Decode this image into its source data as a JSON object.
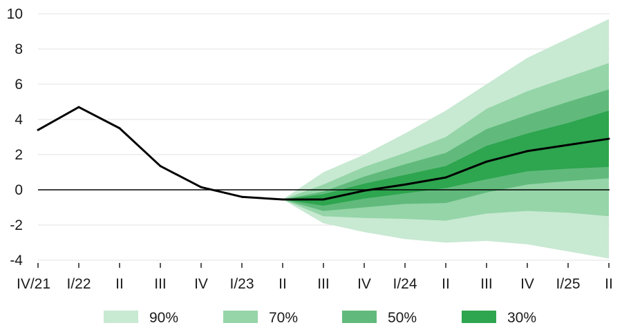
{
  "chart_data": {
    "type": "area",
    "title": "",
    "xlabel": "",
    "ylabel": "",
    "x_ticks": [
      "IV/21",
      "I/22",
      "II",
      "III",
      "IV",
      "I/23",
      "II",
      "III",
      "IV",
      "I/24",
      "II",
      "III",
      "IV",
      "I/25",
      "II"
    ],
    "y_ticks": [
      10,
      8,
      6,
      4,
      2,
      0,
      -2,
      -4
    ],
    "ylim": [
      -4,
      10
    ],
    "grid": "horizontal",
    "zero_line": true,
    "legend_position": "bottom",
    "central_line": {
      "color": "#000000",
      "values": [
        3.4,
        4.7,
        3.5,
        1.35,
        0.15,
        -0.4,
        -0.55,
        -0.55,
        -0.05,
        0.3,
        0.7,
        1.6,
        2.2,
        2.55,
        2.9
      ]
    },
    "fan_start_index": 6,
    "bands": [
      {
        "name": "90%",
        "color": "#c8e9d2",
        "lower": [
          -0.55,
          -1.9,
          -2.4,
          -2.8,
          -3.0,
          -2.9,
          -3.1,
          -3.5,
          -3.9
        ],
        "upper": [
          -0.55,
          1.0,
          2.0,
          3.2,
          4.5,
          6.0,
          7.5,
          8.6,
          9.7
        ]
      },
      {
        "name": "70%",
        "color": "#95d5a8",
        "lower": [
          -0.55,
          -1.5,
          -1.6,
          -1.65,
          -1.75,
          -1.35,
          -1.2,
          -1.3,
          -1.5
        ],
        "upper": [
          -0.55,
          0.3,
          1.3,
          2.1,
          3.0,
          4.6,
          5.6,
          6.4,
          7.2
        ]
      },
      {
        "name": "50%",
        "color": "#61ba7c",
        "lower": [
          -0.55,
          -1.2,
          -1.0,
          -0.8,
          -0.75,
          -0.15,
          0.3,
          0.5,
          0.65
        ],
        "upper": [
          -0.55,
          -0.1,
          0.75,
          1.45,
          2.1,
          3.45,
          4.25,
          5.0,
          5.7
        ]
      },
      {
        "name": "30%",
        "color": "#2ea54f",
        "lower": [
          -0.55,
          -0.9,
          -0.5,
          -0.2,
          0.1,
          0.6,
          1.05,
          1.2,
          1.3
        ],
        "upper": [
          -0.55,
          -0.25,
          0.35,
          0.85,
          1.35,
          2.5,
          3.2,
          3.8,
          4.5
        ]
      }
    ]
  },
  "legend": {
    "items": [
      {
        "label": "90%",
        "color": "#c8e9d2"
      },
      {
        "label": "70%",
        "color": "#95d5a8"
      },
      {
        "label": "50%",
        "color": "#61ba7c"
      },
      {
        "label": "30%",
        "color": "#2ea54f"
      }
    ]
  }
}
